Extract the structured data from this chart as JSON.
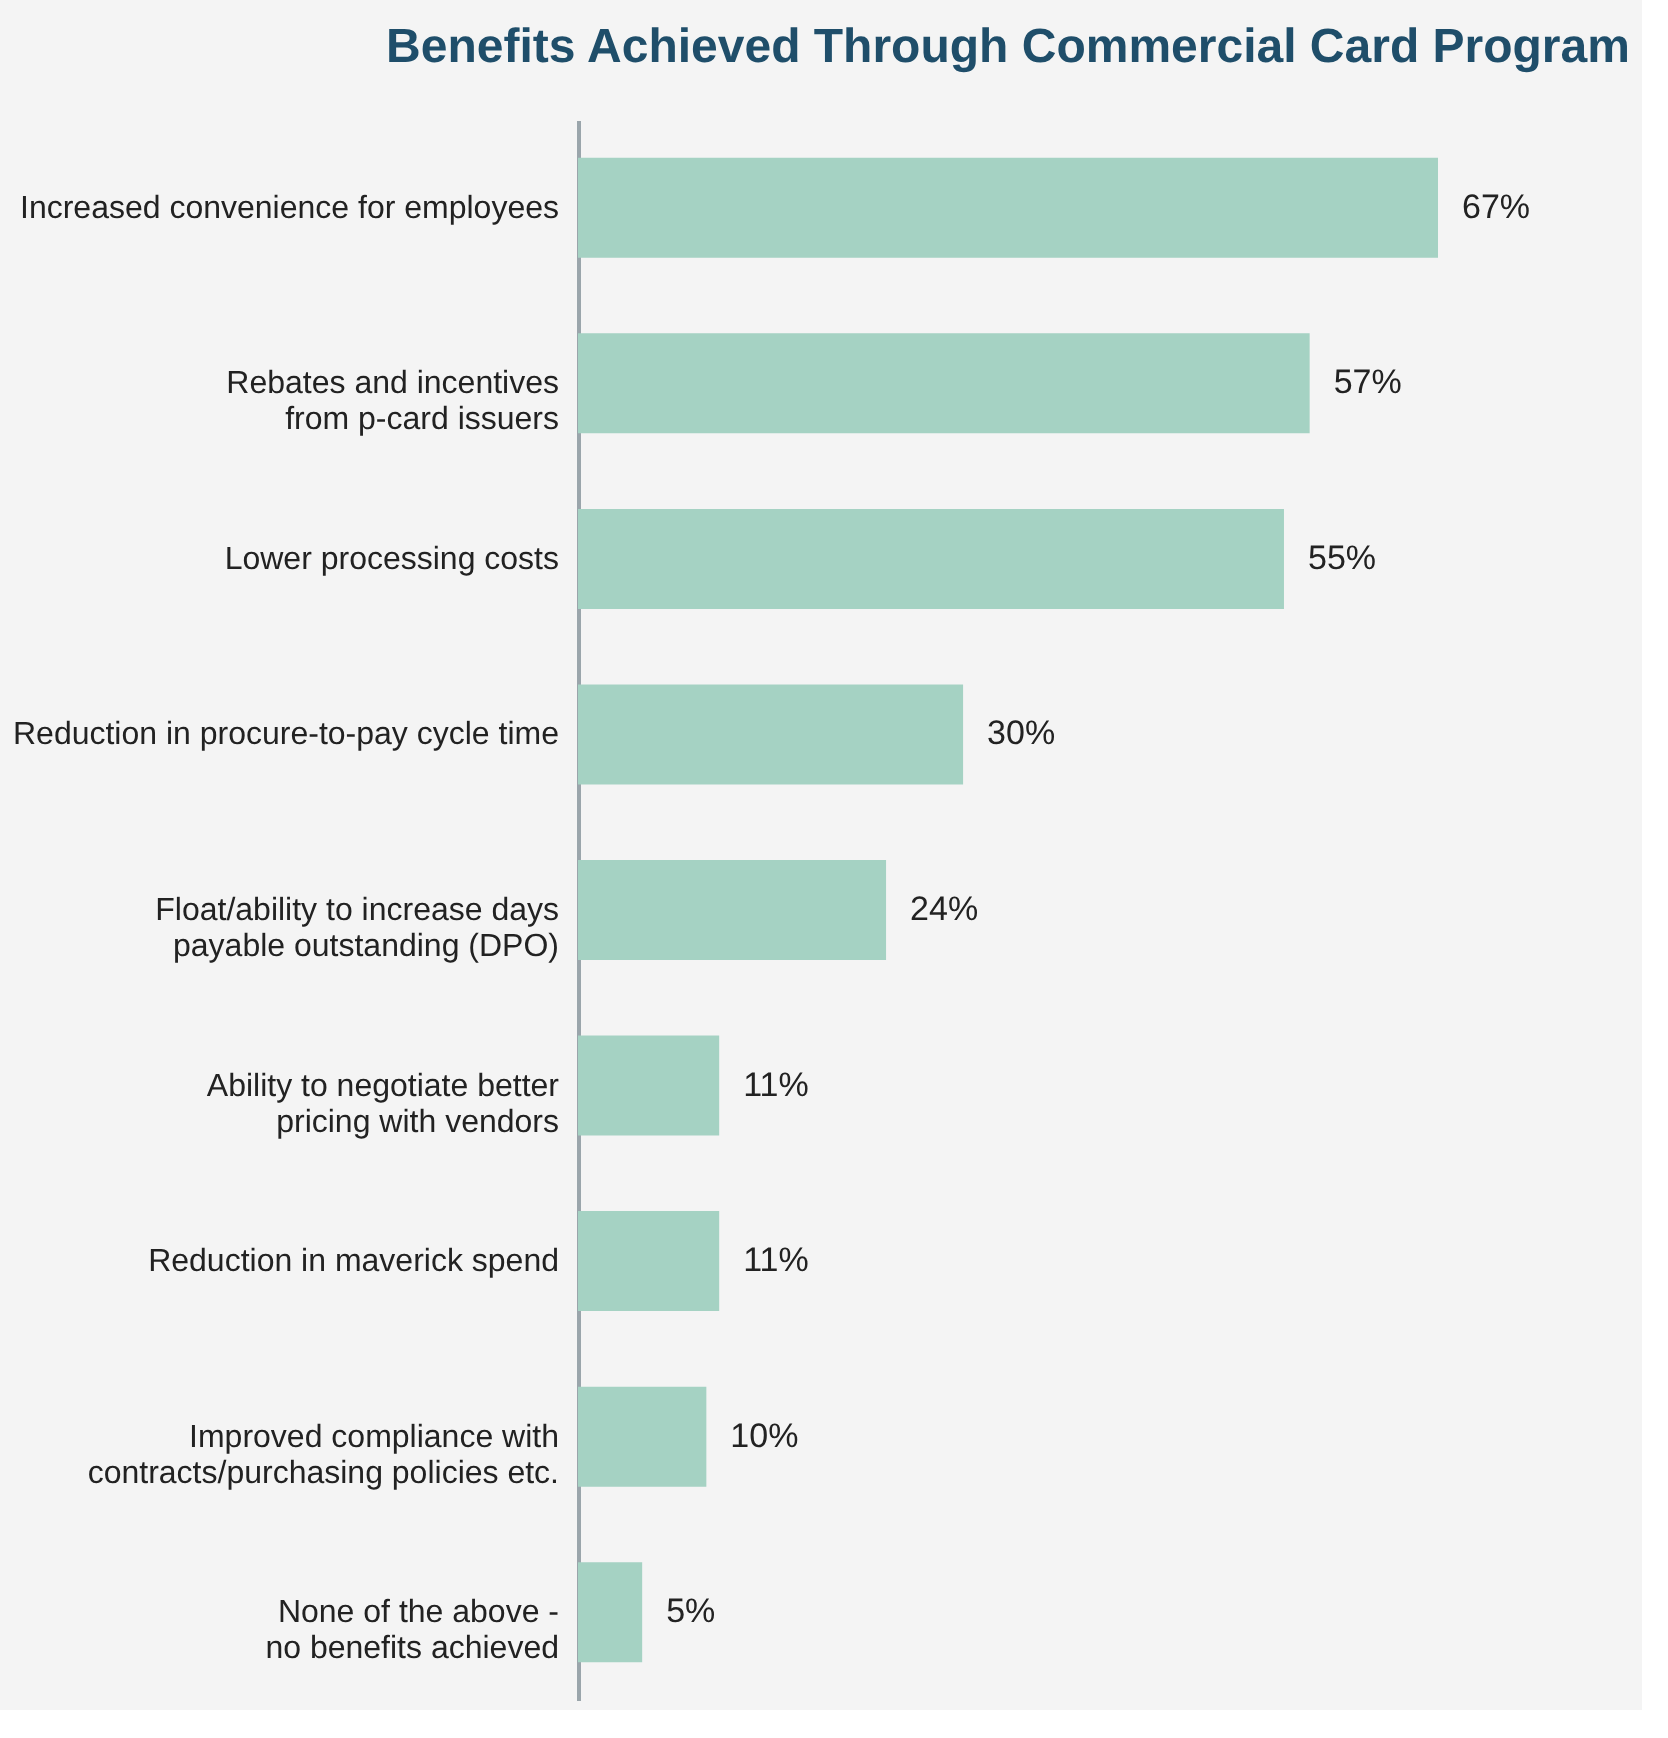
{
  "chart_data": {
    "type": "bar",
    "orientation": "horizontal",
    "title": "Benefits Achieved Through Commercial Card Program",
    "categories": [
      "Increased convenience for employees",
      "Rebates and incentives\nfrom p-card issuers",
      "Lower processing costs",
      "Reduction in procure-to-pay cycle time",
      "Float/ability to increase days\npayable outstanding (DPO)",
      "Ability to negotiate better\npricing with vendors",
      "Reduction in maverick spend",
      "Improved compliance with\ncontracts/purchasing policies etc.",
      "None of the above -\nno benefits achieved"
    ],
    "values": [
      67,
      57,
      55,
      30,
      24,
      11,
      11,
      10,
      5
    ],
    "color": "#a5d2c3",
    "value_labels": [
      "67%",
      "57%",
      "55%",
      "30%",
      "24%",
      "11%",
      "11%",
      "10%",
      "5%"
    ],
    "grid": false
  }
}
